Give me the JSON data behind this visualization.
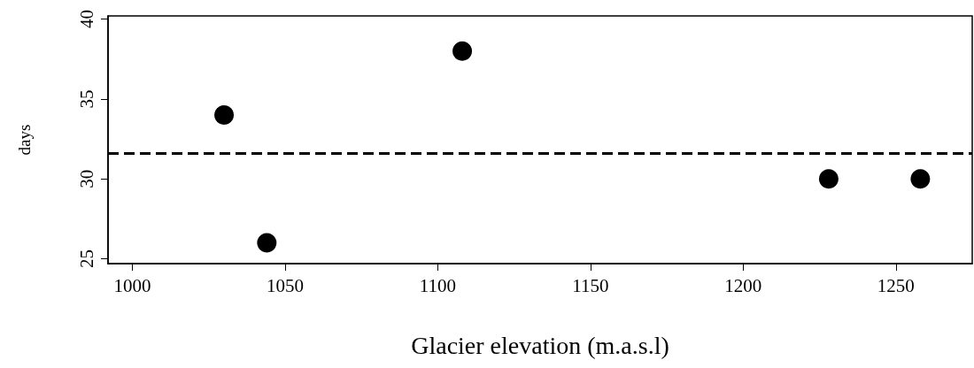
{
  "chart_data": {
    "type": "scatter",
    "xlabel": "Glacier elevation (m.a.s.l)",
    "ylabel": "days",
    "x": [
      1030,
      1044,
      1108,
      1228,
      1258
    ],
    "values": [
      34,
      26,
      38,
      30,
      30
    ],
    "color": "#000000",
    "marker": "circle",
    "xlim": [
      992,
      1275
    ],
    "xticks": [
      1000,
      1050,
      1100,
      1150,
      1200,
      1250
    ],
    "ylim": [
      24.7,
      40.2
    ],
    "yticks": [
      25,
      30,
      35,
      40
    ],
    "grid": false,
    "ref_lines": [
      {
        "axis": "y",
        "value": 31.6,
        "label": null,
        "color": "#000000",
        "line_style": "dashed"
      }
    ]
  }
}
